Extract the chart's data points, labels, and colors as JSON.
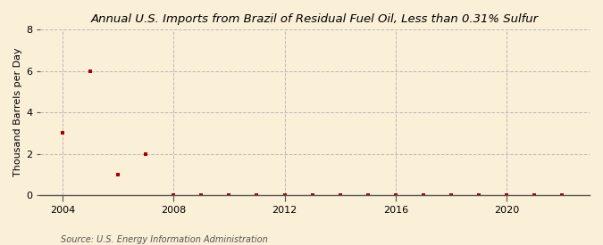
{
  "title": "Annual U.S. Imports from Brazil of Residual Fuel Oil, Less than 0.31% Sulfur",
  "ylabel": "Thousand Barrels per Day",
  "source": "Source: U.S. Energy Information Administration",
  "background_color": "#faefd7",
  "marker_color": "#aa0000",
  "grid_color": "#bbbbbb",
  "years": [
    2004,
    2005,
    2006,
    2007,
    2008,
    2009,
    2010,
    2011,
    2012,
    2013,
    2014,
    2015,
    2016,
    2017,
    2018,
    2019,
    2020,
    2021,
    2022
  ],
  "values": [
    3.0,
    6.0,
    1.0,
    2.0,
    0.0,
    0.0,
    0.0,
    0.0,
    0.01,
    0.0,
    0.01,
    0.0,
    0.01,
    0.0,
    0.01,
    0.0,
    0.01,
    0.0,
    0.01
  ],
  "xlim": [
    2003.2,
    2023.0
  ],
  "ylim": [
    0,
    8
  ],
  "yticks": [
    0,
    2,
    4,
    6,
    8
  ],
  "xticks": [
    2004,
    2008,
    2012,
    2016,
    2020
  ],
  "title_fontsize": 9.5,
  "label_fontsize": 8,
  "tick_fontsize": 8,
  "source_fontsize": 7
}
